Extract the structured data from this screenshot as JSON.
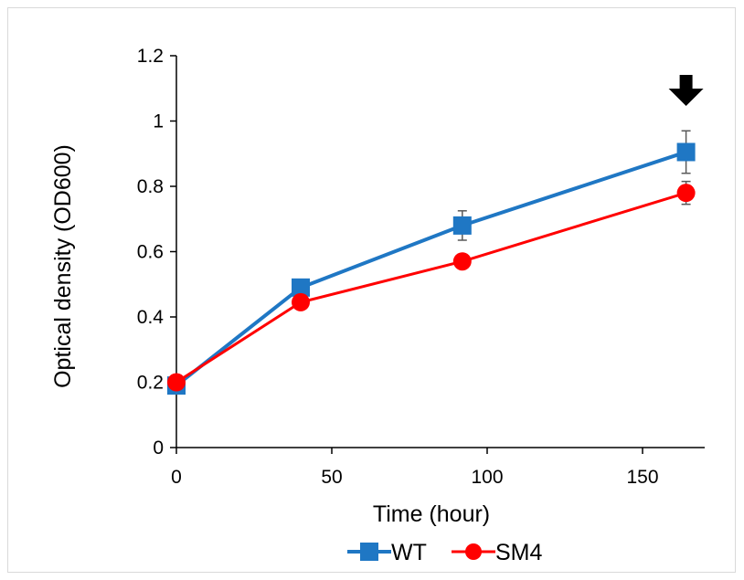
{
  "chart_data": {
    "type": "line",
    "title": "",
    "xlabel": "Time (hour)",
    "ylabel": "Optical density (OD600)",
    "xlim": [
      0,
      170
    ],
    "ylim": [
      0,
      1.2
    ],
    "xticks": [
      0,
      50,
      100,
      150
    ],
    "yticks": [
      0,
      0.2,
      0.4,
      0.6,
      0.8,
      1,
      1.2
    ],
    "xtick_labels": [
      "0",
      "50",
      "100",
      "150"
    ],
    "ytick_labels": [
      "0",
      "0.2",
      "0.4",
      "0.6",
      "0.8",
      "1",
      "1.2"
    ],
    "grid": false,
    "legend_position": "bottom",
    "series": [
      {
        "name": "WT",
        "color": "#1f77c4",
        "marker": "square",
        "x": [
          0,
          40,
          92,
          164
        ],
        "y": [
          0.19,
          0.49,
          0.68,
          0.905
        ],
        "error": [
          0.0,
          0.0,
          0.045,
          0.065
        ]
      },
      {
        "name": "SM4",
        "color": "#ff0000",
        "marker": "circle",
        "x": [
          0,
          40,
          92,
          164
        ],
        "y": [
          0.2,
          0.445,
          0.57,
          0.78
        ],
        "error": [
          0.0,
          0.0,
          0.0,
          0.035
        ]
      }
    ],
    "annotations": [
      {
        "type": "arrow-down",
        "x": 164,
        "color": "#000000"
      }
    ]
  }
}
